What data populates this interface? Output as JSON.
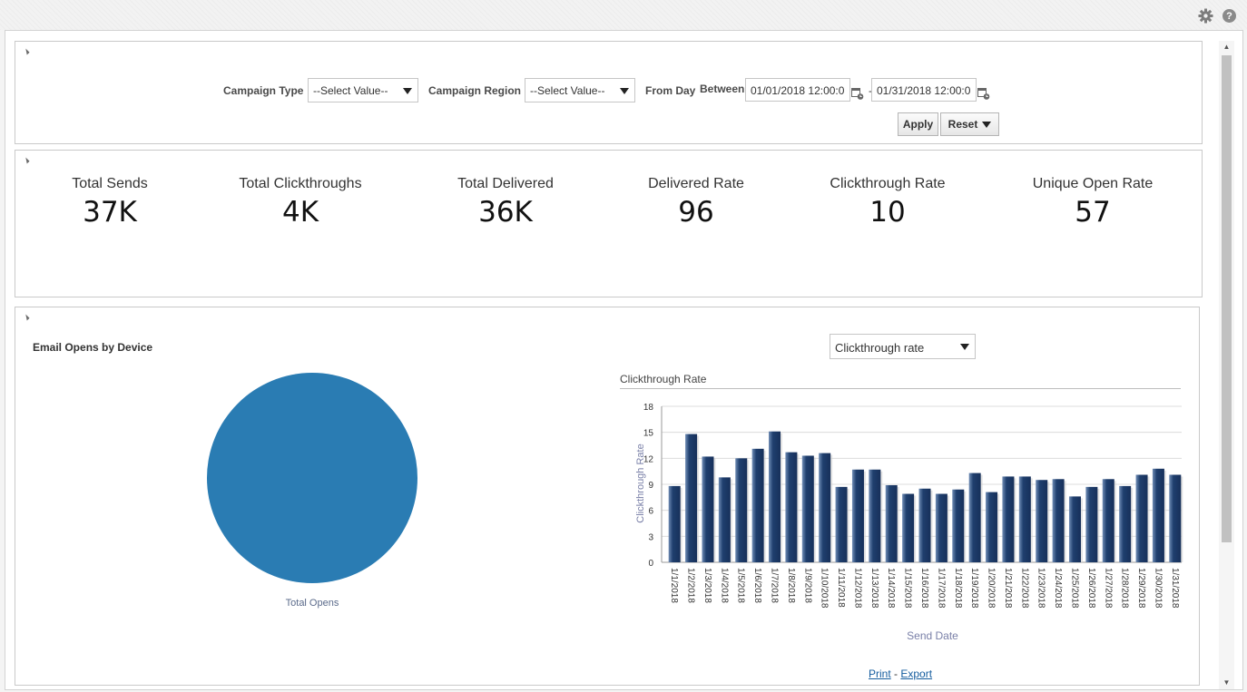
{
  "header": {
    "settings_icon": "gear-icon",
    "help_icon": "help-icon",
    "help_glyph": "?"
  },
  "filters": {
    "campaign_type": {
      "label": "Campaign Type",
      "value": "--Select Value--"
    },
    "campaign_region": {
      "label": "Campaign Region",
      "value": "--Select Value--"
    },
    "from_day": {
      "label": "From Day",
      "operator": "Between",
      "start": "01/01/2018 12:00:0",
      "separator": "-",
      "end": "01/31/2018 12:00:0"
    },
    "apply_label": "Apply",
    "reset_label": "Reset"
  },
  "kpis": [
    {
      "title": "Total Sends",
      "value": "37K"
    },
    {
      "title": "Total Clickthroughs",
      "value": "4K"
    },
    {
      "title": "Total Delivered",
      "value": "36K"
    },
    {
      "title": "Delivered Rate",
      "value": "96"
    },
    {
      "title": "Clickthrough Rate",
      "value": "10"
    },
    {
      "title": "Unique Open Rate",
      "value": "57"
    }
  ],
  "device_section": {
    "title": "Email Opens by Device",
    "pie_label": "Total Opens",
    "pie_color": "#2a7cb3"
  },
  "metric_select": {
    "value": "Clickthrough rate"
  },
  "chart_data": [
    {
      "type": "pie",
      "title": "Email Opens by Device",
      "categories": [
        "Total Opens"
      ],
      "values": [
        100
      ],
      "colors": [
        "#2a7cb3"
      ]
    },
    {
      "type": "bar",
      "title": "Clickthrough Rate",
      "xlabel": "Send Date",
      "ylabel": "Clickthrough Rate",
      "ylim": [
        0,
        18
      ],
      "yticks": [
        0,
        3,
        6,
        9,
        12,
        15,
        18
      ],
      "grid": true,
      "bar_color": "#1f3f6e",
      "categories": [
        "1/1/2018",
        "1/2/2018",
        "1/3/2018",
        "1/4/2018",
        "1/5/2018",
        "1/6/2018",
        "1/7/2018",
        "1/8/2018",
        "1/9/2018",
        "1/10/2018",
        "1/11/2018",
        "1/12/2018",
        "1/13/2018",
        "1/14/2018",
        "1/15/2018",
        "1/16/2018",
        "1/17/2018",
        "1/18/2018",
        "1/19/2018",
        "1/20/2018",
        "1/21/2018",
        "1/22/2018",
        "1/23/2018",
        "1/24/2018",
        "1/25/2018",
        "1/26/2018",
        "1/27/2018",
        "1/28/2018",
        "1/29/2018",
        "1/30/2018",
        "1/31/2018"
      ],
      "values": [
        8.8,
        14.8,
        12.2,
        9.8,
        12.0,
        13.1,
        15.1,
        12.7,
        12.3,
        12.6,
        8.7,
        10.7,
        10.7,
        8.9,
        7.9,
        8.5,
        7.9,
        8.4,
        10.3,
        8.1,
        9.9,
        9.9,
        9.5,
        9.6,
        7.6,
        8.7,
        9.6,
        8.8,
        10.1,
        10.8,
        10.1
      ]
    }
  ],
  "footer_links": {
    "print": "Print",
    "separator": "-",
    "export": "Export"
  }
}
